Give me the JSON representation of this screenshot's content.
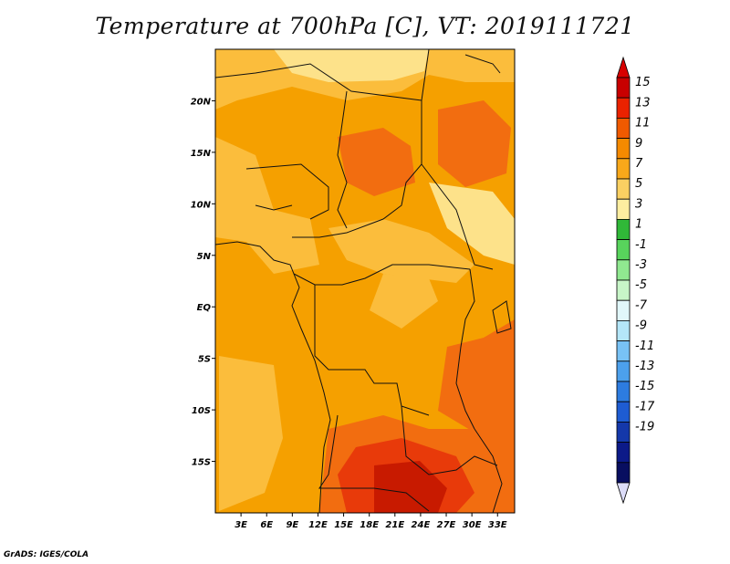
{
  "title": "Temperature at 700hPa [C], VT: 2019111721",
  "credit": "GrADS: IGES/COLA",
  "map": {
    "lon_range": [
      0,
      35
    ],
    "lat_range": [
      -20,
      25
    ],
    "lat_labels": [
      "20N",
      "15N",
      "10N",
      "5N",
      "EQ",
      "5S",
      "10S",
      "15S"
    ],
    "lon_labels": [
      "3E",
      "6E",
      "9E",
      "12E",
      "15E",
      "18E",
      "21E",
      "24E",
      "27E",
      "30E",
      "33E"
    ]
  },
  "colorbar": {
    "labels": [
      "15",
      "13",
      "11",
      "9",
      "7",
      "5",
      "3",
      "1",
      "-1",
      "-3",
      "-5",
      "-7",
      "-9",
      "-11",
      "-13",
      "-15",
      "-17",
      "-19"
    ],
    "colors": [
      "#c80000",
      "#ea2200",
      "#f05a00",
      "#f58a00",
      "#f8a81a",
      "#fad062",
      "#fdeea0",
      "#30b838",
      "#58d35c",
      "#90e890",
      "#c8f5c8",
      "#e1f7fa",
      "#b4e6f8",
      "#78c2f5",
      "#4ca0ec",
      "#2d7ce0",
      "#1e5cd2",
      "#1438aa",
      "#0c1a88",
      "#080e60"
    ],
    "top_arrow_color": "#d80000",
    "bottom_arrow_color": "#dcdcf8"
  },
  "field_colors": {
    "base": "#f5a000",
    "warm": "#fbbd3c",
    "cool": "#fde28a",
    "hot": "#f26d10",
    "hotter": "#e83a0a",
    "hottest": "#c81a00"
  }
}
